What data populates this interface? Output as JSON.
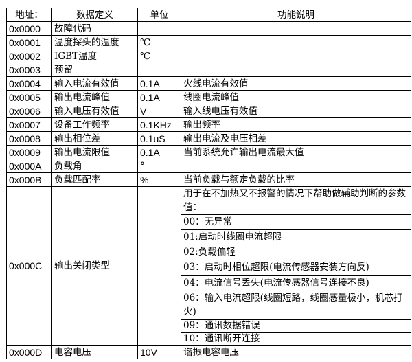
{
  "headers": [
    "地址：",
    "数据定义",
    "单位",
    "功能说明"
  ],
  "rows": [
    {
      "addr": "0x0000",
      "def": "故障代码",
      "unit": "",
      "desc": ""
    },
    {
      "addr": "0x0001",
      "def": "温度探头的温度",
      "unit": "℃",
      "desc": ""
    },
    {
      "addr": "0x0002",
      "def": "IGBT温度",
      "unit": "℃",
      "desc": ""
    },
    {
      "addr": "0x0003",
      "def": "预留",
      "unit": "",
      "desc": ""
    },
    {
      "addr": "0x0004",
      "def": "输入电流有效值",
      "unit": "0.1A",
      "desc": "火线电流有效值"
    },
    {
      "addr": "0x0005",
      "def": "输出电流峰值",
      "unit": "0.1A",
      "desc": "线圈电流峰值"
    },
    {
      "addr": "0x0006",
      "def": "输入电压有效值",
      "unit": "V",
      "desc": "输入线电压有效值"
    },
    {
      "addr": "0x0007",
      "def": "设备工作频率",
      "unit": "0.1KHz",
      "desc": "输出频率"
    },
    {
      "addr": "0x0008",
      "def": "输出相位差",
      "unit": "0.1uS",
      "desc": "输出电流及电压相差"
    },
    {
      "addr": "0x0009",
      "def": "输出电流限值",
      "unit": "0.1A",
      "desc": "当前系统允许输出电流最大值"
    },
    {
      "addr": "0x000A",
      "def": "负载角",
      "unit": "°",
      "desc": ""
    },
    {
      "addr": "0x000B",
      "def": "负载匹配率",
      "unit": "%",
      "desc": "当前负载与额定负载的比率"
    },
    {
      "addr": "0x000C",
      "def": "输出关闭类型",
      "unit": "",
      "desc_items": [
        "用于在不加热又不报警的情况下帮助做辅助判断的参数值：",
        "00：无异常",
        "01:启动时线圈电流超限",
        "02:负载偏轻",
        "03：启动时相位超限(电流传感器安装方向反)",
        "04：电流信号丢失(电流传感器信号连接不良)",
        "06：输入电流超限(线圈短路，线圈感量极小，机芯打火)",
        "09：通讯数据错误",
        "10：通讯断开连接"
      ]
    },
    {
      "addr": "0x000D",
      "def": "电容电压",
      "unit": "10V",
      "desc": "谐振电容电压"
    }
  ]
}
